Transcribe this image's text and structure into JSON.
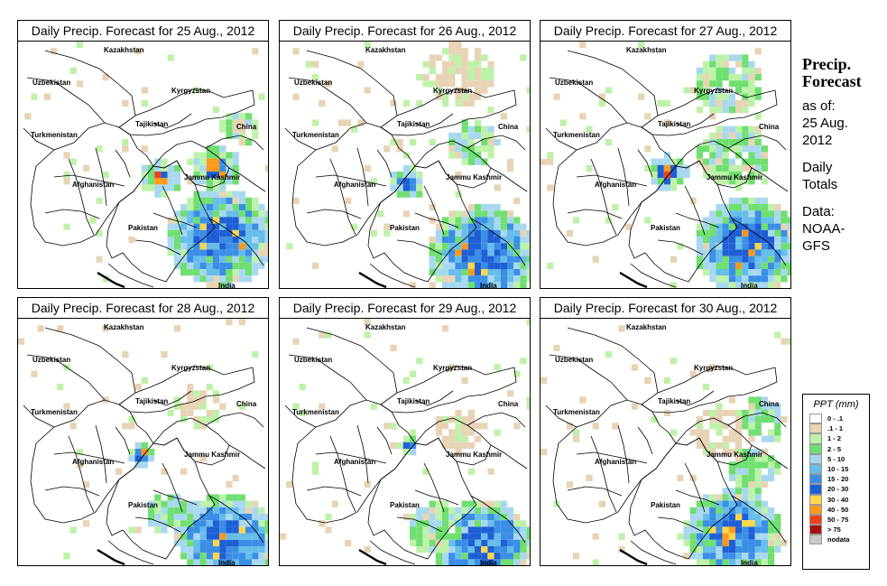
{
  "side_panel": {
    "title_line1": "Precip.",
    "title_line2": "Forecast",
    "as_of_line1": "as of:",
    "as_of_line2": "25 Aug.",
    "as_of_line3": "2012",
    "daily_line1": "Daily",
    "daily_line2": "Totals",
    "data_line1": "Data:",
    "data_line2": "NOAA-",
    "data_line3": "GFS"
  },
  "panels": [
    {
      "title": "Daily Precip. Forecast for  25 Aug., 2012",
      "day": 25
    },
    {
      "title": "Daily Precip. Forecast for  26 Aug., 2012",
      "day": 26
    },
    {
      "title": "Daily Precip. Forecast for  27 Aug., 2012",
      "day": 27
    },
    {
      "title": "Daily Precip. Forecast for  28 Aug., 2012",
      "day": 28
    },
    {
      "title": "Daily Precip. Forecast for  29 Aug., 2012",
      "day": 29
    },
    {
      "title": "Daily Precip. Forecast for  30 Aug., 2012",
      "day": 30
    }
  ],
  "map_labels": {
    "kazakhstan": "Kazakhstan",
    "uzbekistan": "Uzbekistan",
    "kyrgyzstan": "Kyrgyzstan",
    "tajikistan": "Tajikistan",
    "china": "China",
    "turkmenistan": "Turkmenistan",
    "afghanistan": "Afghanistan",
    "jammu_kashmir": "Jammu Kashmir",
    "pakistan": "Pakistan",
    "india": "India"
  },
  "legend": {
    "title": "PPT (mm)",
    "items": [
      {
        "label": "0 - .1",
        "color": "#ffffff"
      },
      {
        "label": ".1 - 1",
        "color": "#e8d3b5"
      },
      {
        "label": "1 - 2",
        "color": "#bdf2a8"
      },
      {
        "label": "2 - 5",
        "color": "#6fdf6f"
      },
      {
        "label": "5 - 10",
        "color": "#a8d8f0"
      },
      {
        "label": "10 - 15",
        "color": "#66bde8"
      },
      {
        "label": "15 - 20",
        "color": "#3a8ee6"
      },
      {
        "label": "20 - 30",
        "color": "#1f5fd6"
      },
      {
        "label": "30 - 40",
        "color": "#ffd84a"
      },
      {
        "label": "40 - 50",
        "color": "#ff9a1a"
      },
      {
        "label": "50 - 75",
        "color": "#f0401a"
      },
      {
        "label": "> 75",
        "color": "#a81010"
      },
      {
        "label": "nodata",
        "color": "#c8c8c8"
      }
    ]
  }
}
